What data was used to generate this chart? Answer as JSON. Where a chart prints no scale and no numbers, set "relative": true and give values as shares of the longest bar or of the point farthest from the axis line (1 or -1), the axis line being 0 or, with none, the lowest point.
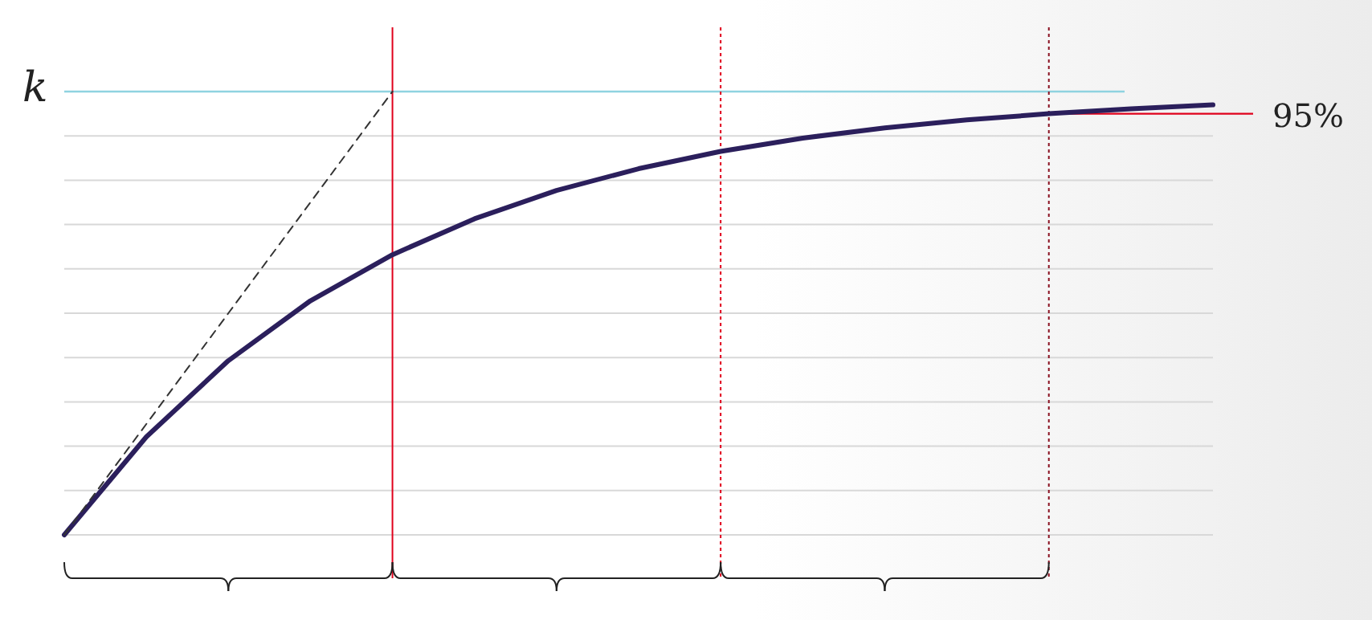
{
  "chart_data": {
    "type": "line",
    "relative": true,
    "grid": "y",
    "categories": [
      null,
      null,
      null,
      null,
      null,
      null,
      null,
      null,
      null,
      null,
      null,
      null,
      null,
      null,
      null
    ],
    "series": [
      {
        "color": "#2b1f5c",
        "values": [
          0,
          0.221,
          0.393,
          0.528,
          0.632,
          0.713,
          0.777,
          0.826,
          0.865,
          0.895,
          0.918,
          0.936,
          0.95,
          0.961,
          0.97
        ]
      },
      {
        "color": "#333333",
        "line_style": "dashed",
        "values": [
          0,
          0.25,
          0.5,
          0.75,
          1,
          null,
          null,
          null,
          null,
          null,
          null,
          null,
          null,
          null,
          null
        ]
      }
    ],
    "ref_lines": [
      {
        "axis": "y",
        "value": 1,
        "label": "k",
        "color": "#8fd3e0",
        "line_style": "solid"
      },
      {
        "axis": "y",
        "value": 0.95,
        "label": "95%",
        "color": "#e0001b",
        "line_style": "solid"
      }
    ]
  }
}
